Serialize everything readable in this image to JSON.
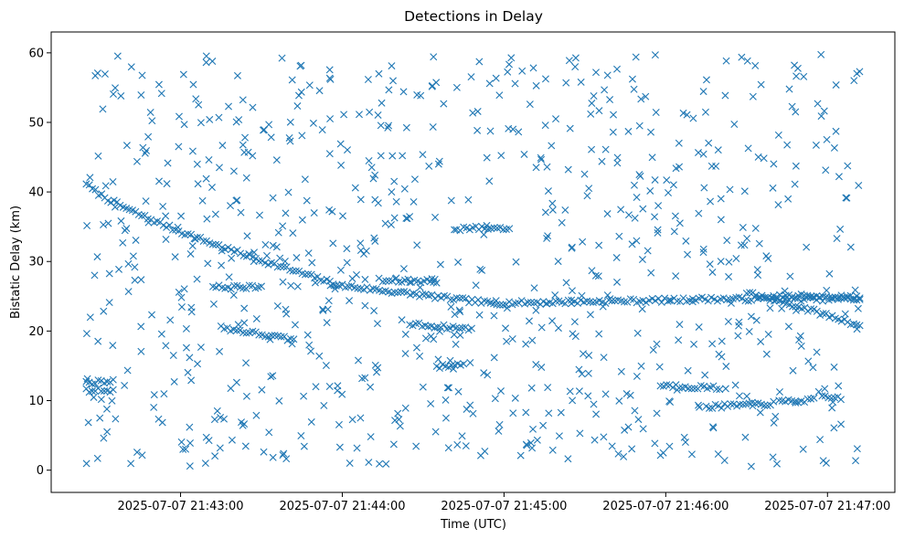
{
  "chart_data": {
    "type": "scatter",
    "title": "Detections in Delay",
    "xlabel": "Time (UTC)",
    "ylabel": "Bistatic Delay (km)",
    "marker": "x",
    "color": "#1f77b4",
    "grid": false,
    "xlim": [
      "2025-07-07 21:42:12",
      "2025-07-07 21:47:25"
    ],
    "ylim": [
      -3.2,
      63
    ],
    "xticks": [
      "2025-07-07 21:43:00",
      "2025-07-07 21:44:00",
      "2025-07-07 21:45:00",
      "2025-07-07 21:46:00",
      "2025-07-07 21:47:00"
    ],
    "yticks": [
      0,
      10,
      20,
      30,
      40,
      50,
      60
    ],
    "time_range": [
      "2025-07-07 21:42:25",
      "2025-07-07 21:47:12"
    ],
    "tracks": [
      {
        "t_start": "2025-07-07 21:42:25",
        "t_end": "2025-07-07 21:44:00",
        "y_start": 41.3,
        "y_end": 26.5,
        "curve": 0.75
      },
      {
        "t_start": "2025-07-07 21:44:00",
        "t_end": "2025-07-07 21:44:55",
        "y_start": 26.5,
        "y_end": 24.0,
        "curve": 1.0
      },
      {
        "t_start": "2025-07-07 21:44:55",
        "t_end": "2025-07-07 21:46:10",
        "y_start": 24.0,
        "y_end": 24.5,
        "curve": 1.0
      },
      {
        "t_start": "2025-07-07 21:46:10",
        "t_end": "2025-07-07 21:47:12",
        "y_start": 24.6,
        "y_end": 24.6,
        "curve": 1.0
      },
      {
        "t_start": "2025-07-07 21:46:30",
        "t_end": "2025-07-07 21:47:12",
        "y_start": 25.5,
        "y_end": 20.8,
        "curve": 1.1
      },
      {
        "t_start": "2025-07-07 21:43:15",
        "t_end": "2025-07-07 21:43:42",
        "y_start": 20.5,
        "y_end": 18.7,
        "curve": 1.0
      },
      {
        "t_start": "2025-07-07 21:44:25",
        "t_end": "2025-07-07 21:44:48",
        "y_start": 21.0,
        "y_end": 20.3,
        "curve": 1.0
      },
      {
        "t_start": "2025-07-07 21:42:25",
        "t_end": "2025-07-07 21:42:35",
        "y_start": 12.6,
        "y_end": 12.8,
        "curve": 1.0
      },
      {
        "t_start": "2025-07-07 21:42:25",
        "t_end": "2025-07-07 21:42:35",
        "y_start": 11.5,
        "y_end": 11.5,
        "curve": 1.0
      },
      {
        "t_start": "2025-07-07 21:43:12",
        "t_end": "2025-07-07 21:43:30",
        "y_start": 26.3,
        "y_end": 26.3,
        "curve": 1.0
      },
      {
        "t_start": "2025-07-07 21:44:15",
        "t_end": "2025-07-07 21:44:35",
        "y_start": 27.2,
        "y_end": 27.2,
        "curve": 1.0
      },
      {
        "t_start": "2025-07-07 21:44:45",
        "t_end": "2025-07-07 21:45:02",
        "y_start": 34.8,
        "y_end": 34.8,
        "curve": 1.0
      },
      {
        "t_start": "2025-07-07 21:44:35",
        "t_end": "2025-07-07 21:44:45",
        "y_start": 14.8,
        "y_end": 15.3,
        "curve": 1.0
      },
      {
        "t_start": "2025-07-07 21:45:58",
        "t_end": "2025-07-07 21:46:20",
        "y_start": 12.2,
        "y_end": 11.8,
        "curve": 1.0
      },
      {
        "t_start": "2025-07-07 21:46:15",
        "t_end": "2025-07-07 21:46:40",
        "y_start": 9.1,
        "y_end": 9.6,
        "curve": 1.0
      },
      {
        "t_start": "2025-07-07 21:46:42",
        "t_end": "2025-07-07 21:46:55",
        "y_start": 9.8,
        "y_end": 10.1,
        "curve": 1.0
      },
      {
        "t_start": "2025-07-07 21:46:58",
        "t_end": "2025-07-07 21:47:05",
        "y_start": 10.4,
        "y_end": 10.4,
        "curve": 1.0
      },
      {
        "t_start": "2025-07-07 21:46:40",
        "t_end": "2025-07-07 21:47:12",
        "y_start": 25.0,
        "y_end": 25.0,
        "curve": 1.0
      }
    ],
    "clutter": {
      "count": 820,
      "y_range": [
        0.5,
        59.8
      ],
      "seed": 7
    }
  }
}
